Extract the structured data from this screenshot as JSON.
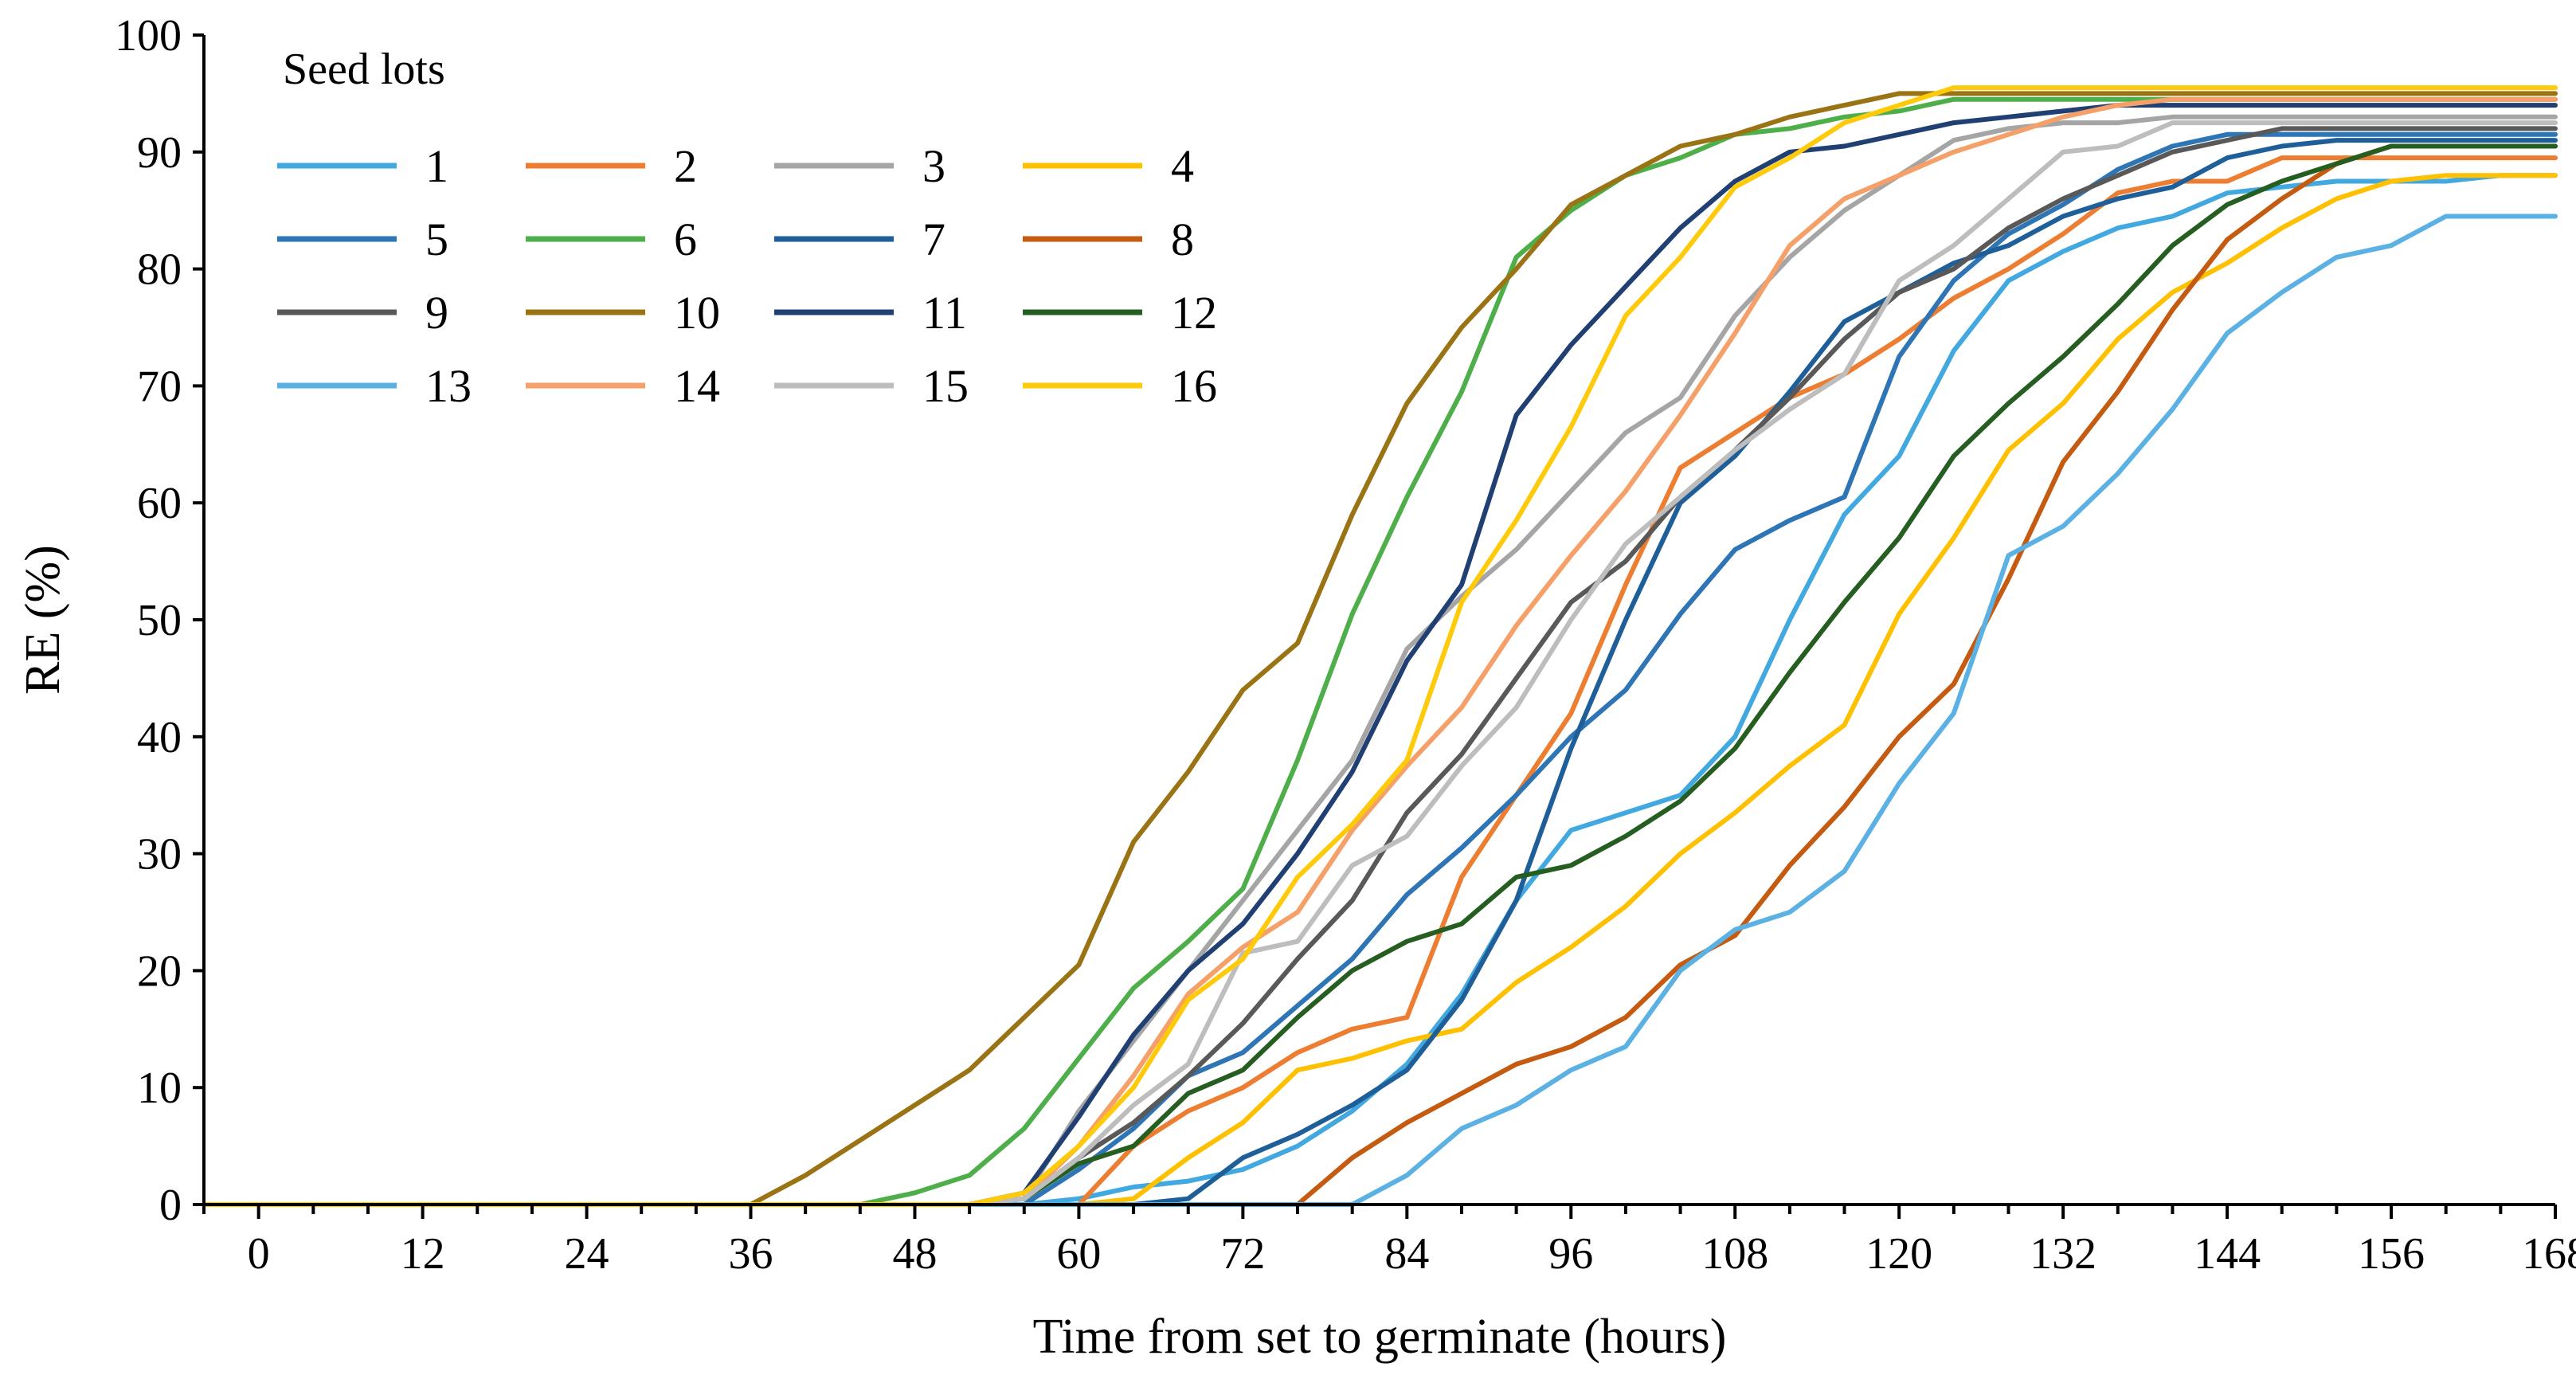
{
  "chart_data": {
    "type": "line",
    "xlabel": "Time from set to germinate (hours)",
    "ylabel": "RE (%)",
    "xlim": [
      -4,
      168
    ],
    "ylim": [
      0,
      100
    ],
    "xticks": [
      0,
      12,
      24,
      36,
      48,
      60,
      72,
      84,
      96,
      108,
      120,
      132,
      144,
      156,
      168
    ],
    "yticks": [
      0,
      10,
      20,
      30,
      40,
      50,
      60,
      70,
      80,
      90,
      100
    ],
    "grid": false,
    "legend": {
      "title": "Seed lots",
      "position": "top-left",
      "columns": 4
    },
    "x": [
      -4,
      0,
      4,
      8,
      12,
      16,
      20,
      24,
      28,
      32,
      36,
      40,
      44,
      48,
      52,
      56,
      60,
      64,
      68,
      72,
      76,
      80,
      84,
      88,
      92,
      96,
      100,
      104,
      108,
      112,
      116,
      120,
      124,
      128,
      132,
      136,
      140,
      144,
      148,
      152,
      156,
      160,
      164,
      168
    ],
    "series": [
      {
        "name": "1",
        "color": "#41A8E0",
        "values": [
          0,
          0,
          0,
          0,
          0,
          0,
          0,
          0,
          0,
          0,
          0,
          0,
          0,
          0,
          0,
          0,
          0.5,
          1.5,
          2,
          3,
          5,
          8,
          12,
          18,
          26,
          32,
          33.5,
          35,
          40,
          50,
          59,
          64,
          73,
          79,
          81.5,
          83.5,
          84.5,
          86.5,
          87,
          87.5,
          87.5,
          87.5,
          88,
          88
        ]
      },
      {
        "name": "2",
        "color": "#ED7D31",
        "values": [
          0,
          0,
          0,
          0,
          0,
          0,
          0,
          0,
          0,
          0,
          0,
          0,
          0,
          0,
          0,
          0,
          0,
          5,
          8,
          10,
          13,
          15,
          16,
          28,
          35,
          42,
          53,
          63,
          66,
          69,
          71,
          74,
          77.5,
          80,
          83,
          86.5,
          87.5,
          87.5,
          89.5,
          89.5,
          89.5,
          89.5,
          89.5,
          89.5
        ]
      },
      {
        "name": "3",
        "color": "#A5A5A5",
        "values": [
          0,
          0,
          0,
          0,
          0,
          0,
          0,
          0,
          0,
          0,
          0,
          0,
          0,
          0,
          0,
          0.5,
          8,
          14,
          20,
          26,
          32,
          38,
          47.5,
          52,
          56,
          61,
          66,
          69,
          76,
          81,
          85,
          88,
          91,
          92,
          92.5,
          92.5,
          93,
          93,
          93,
          93,
          93,
          93,
          93,
          93
        ]
      },
      {
        "name": "4",
        "color": "#FFC000",
        "values": [
          0,
          0,
          0,
          0,
          0,
          0,
          0,
          0,
          0,
          0,
          0,
          0,
          0,
          0,
          0,
          0,
          0,
          0.5,
          4,
          7,
          11.5,
          12.5,
          14,
          15,
          19,
          22,
          25.5,
          30,
          33.5,
          37.5,
          41,
          50.5,
          57,
          64.5,
          68.5,
          74,
          78,
          80.5,
          83.5,
          86,
          87.5,
          88,
          88,
          88
        ]
      },
      {
        "name": "5",
        "color": "#2E75B6",
        "values": [
          0,
          0,
          0,
          0,
          0,
          0,
          0,
          0,
          0,
          0,
          0,
          0,
          0,
          0,
          0,
          0,
          3,
          6.5,
          11,
          13,
          17,
          21,
          26.5,
          30.5,
          35,
          40,
          44,
          50.5,
          56,
          58.5,
          60.5,
          72.5,
          79,
          83,
          85.5,
          88.5,
          90.5,
          91.5,
          91.5,
          91.5,
          91.5,
          91.5,
          91.5,
          91.5
        ]
      },
      {
        "name": "6",
        "color": "#4EAF4A",
        "values": [
          0,
          0,
          0,
          0,
          0,
          0,
          0,
          0,
          0,
          0,
          0,
          0,
          0,
          1,
          2.5,
          6.5,
          12.5,
          18.5,
          22.5,
          27,
          38,
          50.5,
          60.5,
          69.5,
          81,
          85,
          88,
          89.5,
          91.5,
          92,
          93,
          93.5,
          94.5,
          94.5,
          94.5,
          94.5,
          94.5,
          94.5,
          94.5,
          94.5,
          94.5,
          94.5,
          94.5,
          94.5
        ]
      },
      {
        "name": "7",
        "color": "#1F5F99",
        "values": [
          0,
          0,
          0,
          0,
          0,
          0,
          0,
          0,
          0,
          0,
          0,
          0,
          0,
          0,
          0,
          0,
          0,
          0,
          0.5,
          4,
          6,
          8.5,
          11.5,
          17.5,
          26,
          39,
          50,
          60,
          64,
          69.5,
          75.5,
          78,
          80.5,
          82,
          84.5,
          86,
          87,
          89.5,
          90.5,
          91,
          91,
          91,
          91,
          91
        ]
      },
      {
        "name": "8",
        "color": "#C55A11",
        "values": [
          0,
          0,
          0,
          0,
          0,
          0,
          0,
          0,
          0,
          0,
          0,
          0,
          0,
          0,
          0,
          0,
          0,
          0,
          0,
          0,
          0,
          4,
          7,
          9.5,
          12,
          13.5,
          16,
          20.5,
          23,
          29,
          34,
          40,
          44.5,
          53.5,
          63.5,
          69.5,
          76.5,
          82.5,
          86,
          89,
          90.5,
          90.5,
          90.5,
          90.5
        ]
      },
      {
        "name": "9",
        "color": "#595959",
        "values": [
          0,
          0,
          0,
          0,
          0,
          0,
          0,
          0,
          0,
          0,
          0,
          0,
          0,
          0,
          0,
          0.5,
          4,
          7,
          11,
          15.5,
          21,
          26,
          33.5,
          38.5,
          45,
          51.5,
          55,
          60.5,
          64.5,
          69,
          74,
          78,
          80,
          83.5,
          86,
          88,
          90,
          91,
          92,
          92,
          92,
          92,
          92,
          92
        ]
      },
      {
        "name": "10",
        "color": "#9A7414",
        "values": [
          0,
          0,
          0,
          0,
          0,
          0,
          0,
          0,
          0,
          0,
          0,
          2.5,
          5.5,
          8.5,
          11.5,
          16,
          20.5,
          31,
          37,
          44,
          48,
          59,
          68.5,
          75,
          80,
          85.5,
          88,
          90.5,
          91.5,
          93,
          94,
          95,
          95,
          95,
          95,
          95,
          95,
          95,
          95,
          95,
          95,
          95,
          95,
          95
        ]
      },
      {
        "name": "11",
        "color": "#203F73",
        "values": [
          0,
          0,
          0,
          0,
          0,
          0,
          0,
          0,
          0,
          0,
          0,
          0,
          0,
          0,
          0,
          1,
          7.5,
          14.5,
          20,
          24,
          30,
          37,
          46.5,
          53,
          67.5,
          73.5,
          78.5,
          83.5,
          87.5,
          90,
          90.5,
          91.5,
          92.5,
          93,
          93.5,
          94,
          94,
          94,
          94,
          94,
          94,
          94,
          94,
          94
        ]
      },
      {
        "name": "12",
        "color": "#255E20",
        "values": [
          0,
          0,
          0,
          0,
          0,
          0,
          0,
          0,
          0,
          0,
          0,
          0,
          0,
          0,
          0,
          0.5,
          3.5,
          5,
          9.5,
          11.5,
          16,
          20,
          22.5,
          24,
          28,
          29,
          31.5,
          34.5,
          39,
          45.5,
          51.5,
          57,
          64,
          68.5,
          72.5,
          77,
          82,
          85.5,
          87.5,
          89,
          90.5,
          90.5,
          90.5,
          90.5
        ]
      },
      {
        "name": "13",
        "color": "#5BB1E3",
        "values": [
          0,
          0,
          0,
          0,
          0,
          0,
          0,
          0,
          0,
          0,
          0,
          0,
          0,
          0,
          0,
          0,
          0,
          0,
          0,
          0,
          0,
          0,
          2.5,
          6.5,
          8.5,
          11.5,
          13.5,
          20,
          23.5,
          25,
          28.5,
          36,
          42,
          55.5,
          58,
          62.5,
          68,
          74.5,
          78,
          81,
          82,
          84.5,
          84.5,
          84.5
        ]
      },
      {
        "name": "14",
        "color": "#F4A068",
        "values": [
          0,
          0,
          0,
          0,
          0,
          0,
          0,
          0,
          0,
          0,
          0,
          0,
          0,
          0,
          0,
          0.5,
          5,
          11,
          18,
          22,
          25,
          32,
          37.5,
          42.5,
          49.5,
          55.5,
          61,
          67.5,
          74.5,
          82,
          86,
          88,
          90,
          91.5,
          93,
          94,
          94.5,
          94.5,
          94.5,
          94.5,
          94.5,
          94.5,
          94.5,
          94.5
        ]
      },
      {
        "name": "15",
        "color": "#BDBDBD",
        "values": [
          0,
          0,
          0,
          0,
          0,
          0,
          0,
          0,
          0,
          0,
          0,
          0,
          0,
          0,
          0,
          0.5,
          4,
          8.5,
          12,
          21.5,
          22.5,
          29,
          31.5,
          37.5,
          42.5,
          50,
          56.5,
          60.5,
          64.5,
          68,
          71,
          79,
          82,
          86,
          90,
          90.5,
          92.5,
          92.5,
          92.5,
          92.5,
          92.5,
          92.5,
          92.5,
          92.5
        ]
      },
      {
        "name": "16",
        "color": "#FFCA0A",
        "values": [
          0,
          0,
          0,
          0,
          0,
          0,
          0,
          0,
          0,
          0,
          0,
          0,
          0,
          0,
          0,
          1,
          5,
          10,
          17.5,
          21,
          28,
          32.5,
          38,
          51.5,
          58.5,
          66.5,
          76,
          81,
          87,
          89.5,
          92.5,
          94,
          95.5,
          95.5,
          95.5,
          95.5,
          95.5,
          95.5,
          95.5,
          95.5,
          95.5,
          95.5,
          95.5,
          95.5
        ]
      }
    ]
  }
}
